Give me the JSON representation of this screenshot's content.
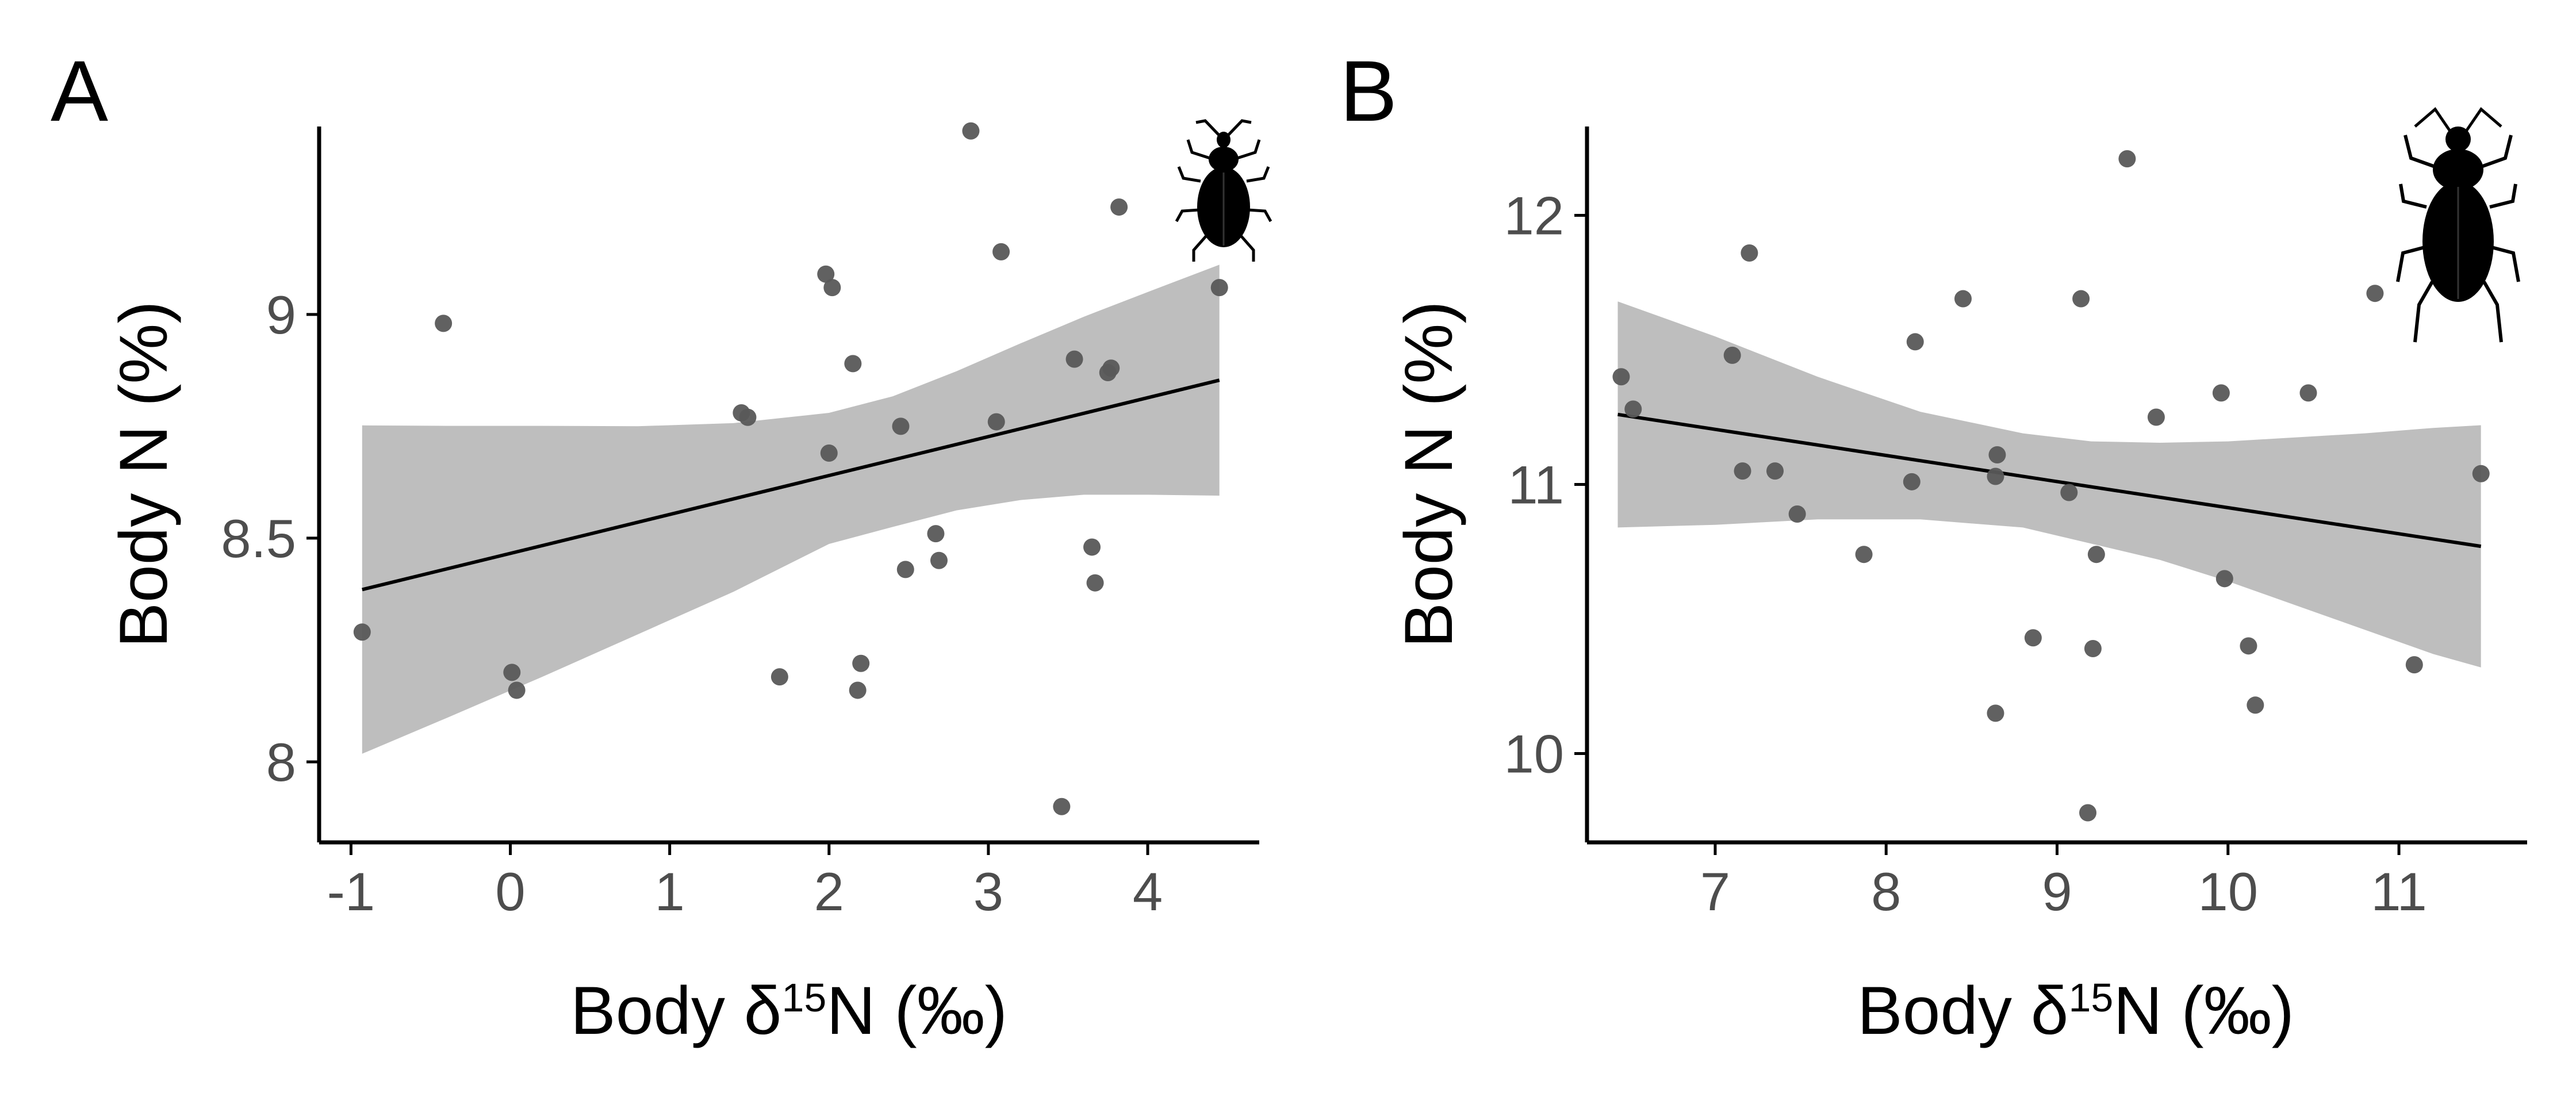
{
  "chart_data": [
    {
      "type": "scatter",
      "panel_label": "A",
      "xlabel": {
        "prefix": "Body δ",
        "sup": "15",
        "suffix": "N (‰)"
      },
      "ylabel": "Body N (%)",
      "xlim": [
        -1.2,
        4.7
      ],
      "ylim": [
        7.82,
        9.42
      ],
      "x_ticks": [
        -1,
        0,
        1,
        2,
        3,
        4
      ],
      "x_tick_labels": [
        "-1",
        "0",
        "1",
        "2",
        "3",
        "4"
      ],
      "y_ticks": [
        8,
        8.5,
        9
      ],
      "y_tick_labels": [
        "8",
        "8.5",
        "9"
      ],
      "grid": false,
      "legend": "none",
      "icon": "weevil-beetle-silhouette",
      "colors": {
        "points": "#595959",
        "line": "#000000",
        "band": "#bebebe"
      },
      "points": [
        {
          "x": -0.93,
          "y": 8.29
        },
        {
          "x": -0.42,
          "y": 8.98
        },
        {
          "x": 0.01,
          "y": 8.2
        },
        {
          "x": 0.04,
          "y": 8.16
        },
        {
          "x": 1.45,
          "y": 8.78
        },
        {
          "x": 1.49,
          "y": 8.77
        },
        {
          "x": 1.69,
          "y": 8.19
        },
        {
          "x": 1.98,
          "y": 9.09
        },
        {
          "x": 2.0,
          "y": 8.69
        },
        {
          "x": 2.02,
          "y": 9.06
        },
        {
          "x": 2.15,
          "y": 8.89
        },
        {
          "x": 2.18,
          "y": 8.16
        },
        {
          "x": 2.2,
          "y": 8.22
        },
        {
          "x": 2.45,
          "y": 8.75
        },
        {
          "x": 2.48,
          "y": 8.43
        },
        {
          "x": 2.67,
          "y": 8.51
        },
        {
          "x": 2.69,
          "y": 8.45
        },
        {
          "x": 2.89,
          "y": 9.41
        },
        {
          "x": 3.05,
          "y": 8.76
        },
        {
          "x": 3.08,
          "y": 9.14
        },
        {
          "x": 3.46,
          "y": 7.9
        },
        {
          "x": 3.54,
          "y": 8.9
        },
        {
          "x": 3.65,
          "y": 8.48
        },
        {
          "x": 3.67,
          "y": 8.4
        },
        {
          "x": 3.75,
          "y": 8.87
        },
        {
          "x": 3.77,
          "y": 8.88
        },
        {
          "x": 3.82,
          "y": 9.24
        },
        {
          "x": 4.45,
          "y": 9.06
        }
      ],
      "fit": {
        "x": [
          -0.93,
          4.45
        ],
        "y": [
          8.385,
          8.853
        ]
      },
      "band": {
        "x": [
          -0.93,
          -0.4,
          0.2,
          0.8,
          1.4,
          2.0,
          2.4,
          2.8,
          3.2,
          3.6,
          4.0,
          4.45
        ],
        "upper": [
          8.752,
          8.751,
          8.751,
          8.75,
          8.757,
          8.78,
          8.817,
          8.873,
          8.935,
          8.995,
          9.05,
          9.111
        ],
        "lower": [
          8.018,
          8.098,
          8.19,
          8.285,
          8.38,
          8.487,
          8.525,
          8.562,
          8.585,
          8.597,
          8.597,
          8.595
        ]
      }
    },
    {
      "type": "scatter",
      "panel_label": "B",
      "xlabel": {
        "prefix": "Body δ",
        "sup": "15",
        "suffix": "N (‰)"
      },
      "ylabel": "Body N (%)",
      "xlim": [
        6.25,
        11.75
      ],
      "ylim": [
        9.67,
        12.33
      ],
      "x_ticks": [
        7,
        8,
        9,
        10,
        11
      ],
      "x_tick_labels": [
        "7",
        "8",
        "9",
        "10",
        "11"
      ],
      "y_ticks": [
        10,
        11,
        12
      ],
      "y_tick_labels": [
        "10",
        "11",
        "12"
      ],
      "grid": false,
      "legend": "none",
      "icon": "ground-beetle-silhouette",
      "colors": {
        "points": "#595959",
        "line": "#000000",
        "band": "#bebebe"
      },
      "points": [
        {
          "x": 6.45,
          "y": 11.4
        },
        {
          "x": 6.52,
          "y": 11.28
        },
        {
          "x": 7.1,
          "y": 11.48
        },
        {
          "x": 7.16,
          "y": 11.05
        },
        {
          "x": 7.2,
          "y": 11.86
        },
        {
          "x": 7.35,
          "y": 11.05
        },
        {
          "x": 7.48,
          "y": 10.89
        },
        {
          "x": 7.87,
          "y": 10.74
        },
        {
          "x": 8.15,
          "y": 11.01
        },
        {
          "x": 8.17,
          "y": 11.53
        },
        {
          "x": 8.45,
          "y": 11.69
        },
        {
          "x": 8.64,
          "y": 11.03
        },
        {
          "x": 8.65,
          "y": 11.11
        },
        {
          "x": 8.64,
          "y": 10.15
        },
        {
          "x": 8.86,
          "y": 10.43
        },
        {
          "x": 9.07,
          "y": 10.97
        },
        {
          "x": 9.14,
          "y": 11.69
        },
        {
          "x": 9.18,
          "y": 9.78
        },
        {
          "x": 9.21,
          "y": 10.39
        },
        {
          "x": 9.23,
          "y": 10.74
        },
        {
          "x": 9.41,
          "y": 12.21
        },
        {
          "x": 9.58,
          "y": 11.25
        },
        {
          "x": 9.96,
          "y": 11.34
        },
        {
          "x": 9.98,
          "y": 10.65
        },
        {
          "x": 10.12,
          "y": 10.4
        },
        {
          "x": 10.16,
          "y": 10.18
        },
        {
          "x": 10.47,
          "y": 11.34
        },
        {
          "x": 10.86,
          "y": 11.71
        },
        {
          "x": 11.09,
          "y": 10.33
        },
        {
          "x": 11.48,
          "y": 11.04
        }
      ],
      "fit": {
        "x": [
          6.43,
          11.48
        ],
        "y": [
          11.26,
          10.77
        ]
      },
      "band": {
        "x": [
          6.43,
          7.0,
          7.6,
          8.2,
          8.8,
          9.2,
          9.6,
          10.0,
          10.4,
          10.8,
          11.2,
          11.48
        ],
        "upper": [
          11.68,
          11.55,
          11.4,
          11.27,
          11.19,
          11.16,
          11.155,
          11.16,
          11.175,
          11.19,
          11.21,
          11.22
        ],
        "lower": [
          10.84,
          10.85,
          10.87,
          10.87,
          10.84,
          10.78,
          10.72,
          10.64,
          10.55,
          10.46,
          10.37,
          10.32
        ]
      }
    }
  ]
}
